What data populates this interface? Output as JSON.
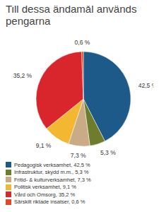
{
  "chart_data": {
    "type": "pie",
    "title": "Till dessa ändamål används pengarna",
    "categories": [
      "Pedagogisk verksamhet, 42,5 %",
      "Infrastruktur, skydd m.m., 5,3 %",
      "Fritid- & kulturverksamhet, 7,3 %",
      "Politisk verksamhet, 9,1 %",
      "Vård och Omsorg, 35,2 %",
      "Särskilt riktade insatser, 0,6 %"
    ],
    "values": [
      42.5,
      5.3,
      7.3,
      9.1,
      35.2,
      0.6
    ],
    "value_labels": [
      "42,5 %",
      "5,3 %",
      "7,3 %",
      "9,1 %",
      "35,2 %",
      "0,6 %"
    ],
    "colors": [
      "#1d5a8a",
      "#6e7c2c",
      "#c9ab86",
      "#f3b731",
      "#d8262c",
      "#e3482a"
    ],
    "data_labels": true,
    "legend": "bottom"
  }
}
